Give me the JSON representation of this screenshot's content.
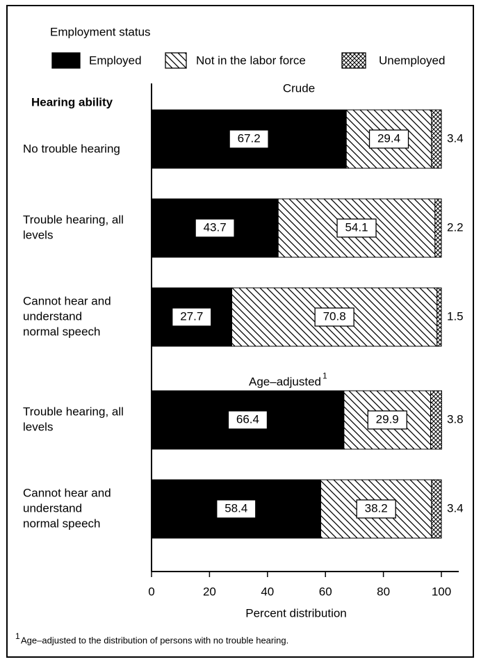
{
  "chart_data": {
    "type": "stacked_horizontal_bar",
    "legend_title": "Employment status",
    "y_axis_label": "Hearing ability",
    "x_axis_label": "Percent distribution",
    "groups": [
      {
        "name": "Crude",
        "categories": [
          [
            "No trouble hearing"
          ],
          [
            "Trouble hearing, all",
            "levels"
          ],
          [
            "Cannot hear and",
            "understand",
            "normal speech"
          ]
        ]
      },
      {
        "name": "Age–adjusted",
        "note_mark": "1",
        "categories": [
          [
            "Trouble hearing, all",
            "levels"
          ],
          [
            "Cannot hear and",
            "understand",
            "normal speech"
          ]
        ]
      }
    ],
    "series": [
      {
        "name": "Employed",
        "color": "#000000",
        "fill": "solid",
        "values": [
          67.2,
          43.7,
          27.7,
          66.4,
          58.4
        ]
      },
      {
        "name": "Not in the labor force",
        "color": "#000000",
        "fill": "hatch",
        "values": [
          29.4,
          54.1,
          70.8,
          29.9,
          38.2
        ]
      },
      {
        "name": "Unemployed",
        "color": "#000000",
        "fill": "crosshatch",
        "values": [
          3.4,
          2.2,
          1.5,
          3.8,
          3.4
        ]
      }
    ],
    "xlim": [
      0,
      100
    ],
    "xticks": [
      0,
      20,
      40,
      60,
      80,
      100
    ],
    "footnote": {
      "mark": "1",
      "text": "Age–adjusted to the distribution of persons with no trouble hearing."
    }
  }
}
